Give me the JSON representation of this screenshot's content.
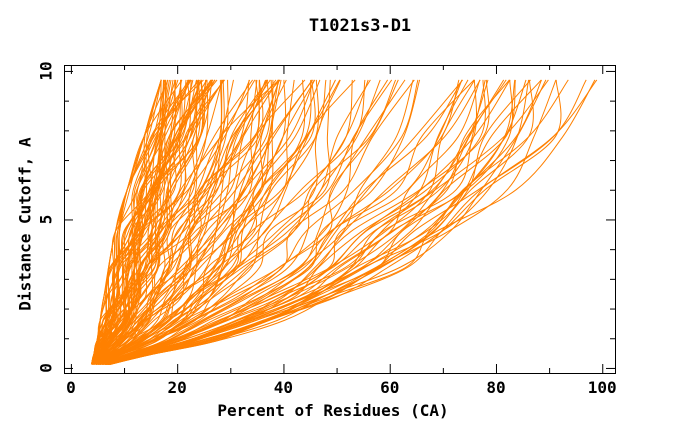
{
  "colors": {
    "background": "#ffffff",
    "axis": "#000000",
    "curve": "#ff8000"
  },
  "chart_data": {
    "type": "line",
    "title": "T1021s3-D1",
    "xlabel": "Percent of Residues (CA)",
    "ylabel": "Distance Cutoff, A",
    "xlim": [
      -1.3,
      102.4
    ],
    "ylim": [
      -0.17,
      10.2
    ],
    "x_major_ticks": [
      0,
      20,
      40,
      60,
      80,
      100
    ],
    "x_minor_ticks": [
      10,
      30,
      50,
      70,
      90
    ],
    "x_tick_labels": [
      "0",
      "20",
      "40",
      "60",
      "80",
      "100"
    ],
    "y_major_ticks": [
      0,
      5,
      10
    ],
    "y_minor_ticks": [
      1,
      2,
      3,
      4,
      6,
      7,
      8,
      9
    ],
    "y_tick_labels": [
      "0",
      "5",
      "10"
    ],
    "grid": false,
    "legend": "none",
    "line_color": "#ff8000",
    "series_count": 160,
    "series_semantics": "Each orange curve is one predicted model of target T1021s3-D1: percent of CA residues (x) fitting under a superposition distance cutoff (y, Angstroms). Curves start near (4-8%, 0.1 A) and all terminate near cutoff 9.7 A, reaching it anywhere from ~17% (worst models, dense left band) to ~98% (best models).",
    "curve_model": {
      "seed": 10213,
      "count": 160,
      "y_controls": [
        0.12,
        0.45,
        0.9,
        1.6,
        2.4,
        3.4,
        4.6,
        6.0,
        7.8,
        9.7
      ],
      "x_left_envelope": [
        3.8,
        4.3,
        4.9,
        5.5,
        6.2,
        7.1,
        8.4,
        10.6,
        13.8,
        17.0
      ],
      "x_right_envelope": [
        7.5,
        15.0,
        27.0,
        40.0,
        52.0,
        64.0,
        74.0,
        84.0,
        93.0,
        98.5
      ],
      "clusters": [
        {
          "fraction": 0.4,
          "q_min": 0.02,
          "q_max": 0.13
        },
        {
          "fraction": 0.14,
          "q_min": 0.13,
          "q_max": 0.3
        },
        {
          "fraction": 0.46,
          "q_min": 0.12,
          "q_max": 1.0,
          "power": 0.8
        }
      ],
      "jitter": 0.14
    }
  }
}
